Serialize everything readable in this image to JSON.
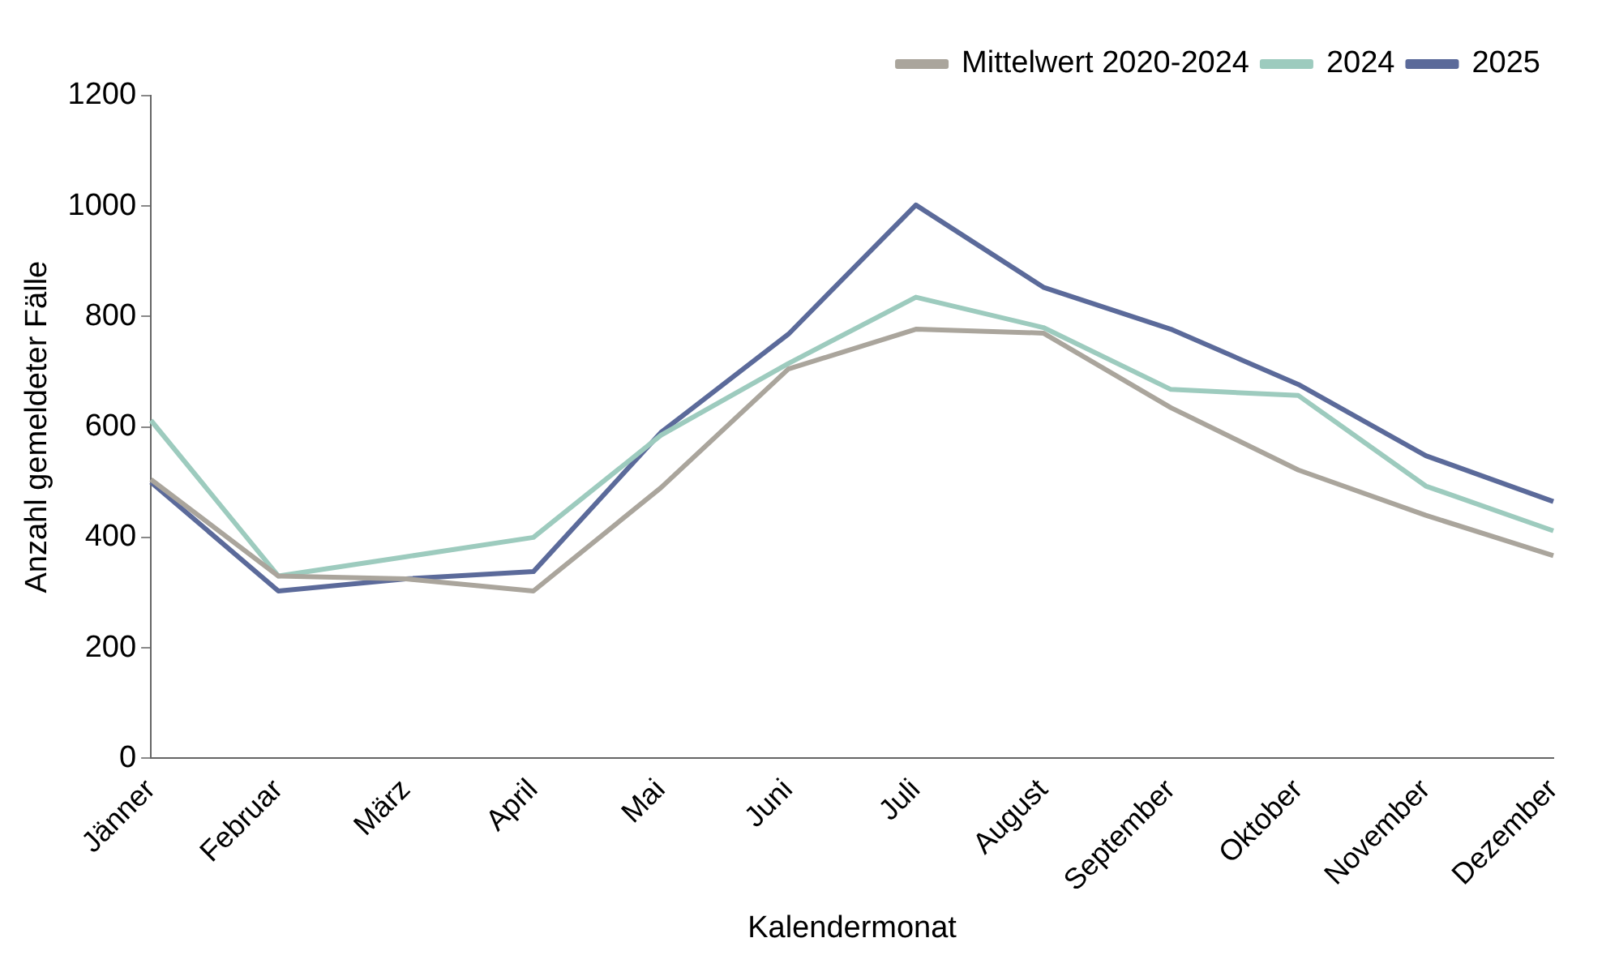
{
  "chart_data": {
    "type": "line",
    "xlabel": "Kalendermonat",
    "ylabel": "Anzahl gemeldeter Fälle",
    "categories": [
      "Jänner",
      "Februar",
      "März",
      "April",
      "Mai",
      "Juni",
      "Juli",
      "August",
      "September",
      "Oktober",
      "November",
      "Dezember"
    ],
    "series": [
      {
        "name": "Mittelwert 2020-2024",
        "color": "#aaa59c",
        "values": [
          505,
          330,
          325,
          303,
          490,
          705,
          777,
          770,
          635,
          522,
          440,
          367
        ]
      },
      {
        "name": "2024",
        "color": "#9dcbbe",
        "values": [
          612,
          330,
          365,
          400,
          585,
          715,
          835,
          780,
          668,
          657,
          493,
          412
        ]
      },
      {
        "name": "2025",
        "color": "#5b6a9a",
        "values": [
          500,
          303,
          325,
          338,
          590,
          768,
          1002,
          853,
          777,
          677,
          548,
          465
        ]
      }
    ],
    "ylim": [
      0,
      1200
    ],
    "yticks": [
      0,
      200,
      400,
      600,
      800,
      1000,
      1200
    ],
    "grid": false,
    "legend": "top right",
    "marker": "none",
    "line_style": "solid"
  }
}
